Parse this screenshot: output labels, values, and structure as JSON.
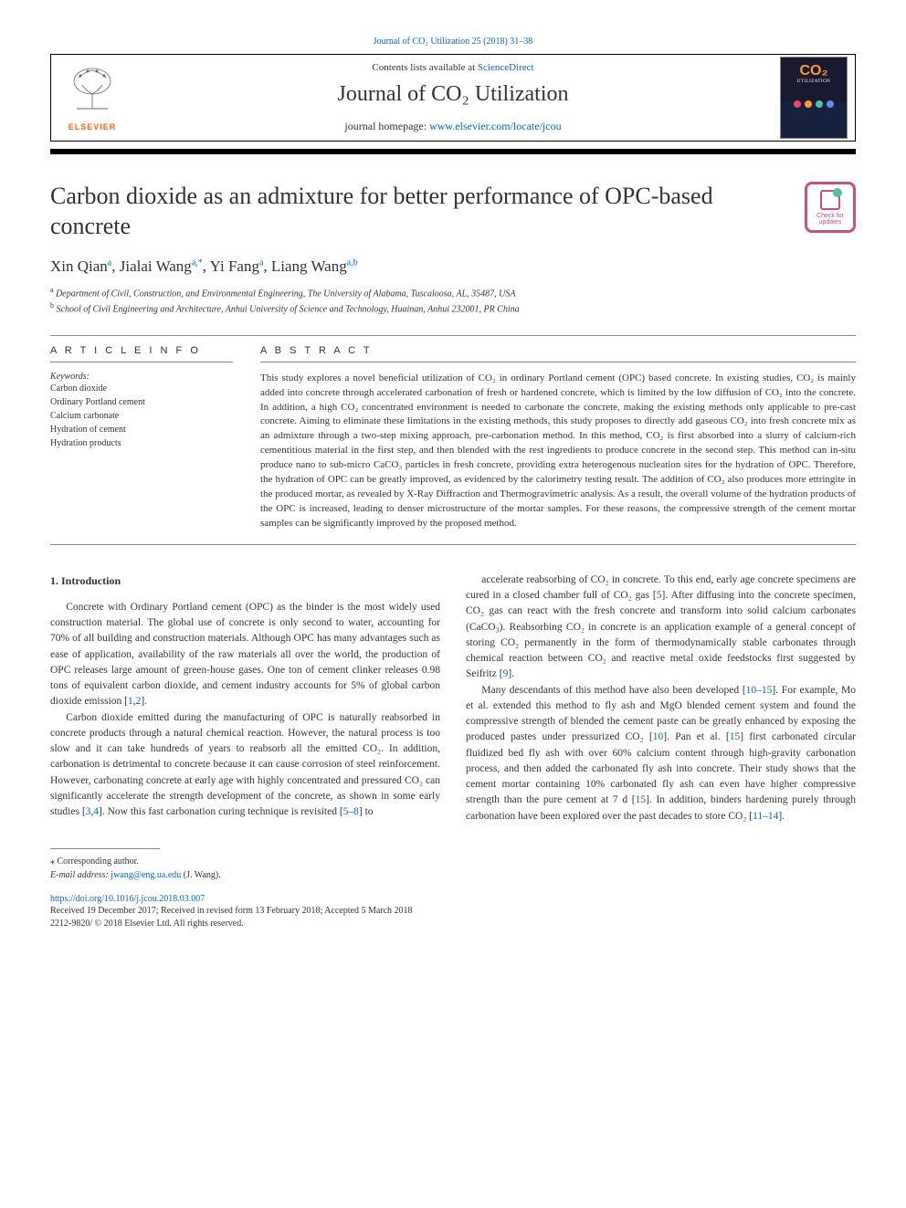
{
  "journal_ref": "Journal of CO₂ Utilization 25 (2018) 31–38",
  "masthead": {
    "contents_prefix": "Contents lists available at ",
    "contents_link": "ScienceDirect",
    "journal_name": "Journal of CO₂ Utilization",
    "homepage_prefix": "journal homepage: ",
    "homepage_link": "www.elsevier.com/locate/jcou",
    "publisher": "ELSEVIER",
    "cover_brand": "CO₂",
    "cover_sub": "UTILIZATION"
  },
  "title": "Carbon dioxide as an admixture for better performance of OPC-based concrete",
  "updates_badge": "Check for updates",
  "authors_html": "Xin Qian<sup class='sup'>a</sup>, Jialai Wang<sup class='sup'>a,*</sup>, Yi Fang<sup class='sup'>a</sup>, Liang Wang<sup class='sup'>a,b</sup>",
  "affiliations": [
    {
      "sup": "a",
      "text": "Department of Civil, Construction, and Environmental Engineering, The University of Alabama, Tuscaloosa, AL, 35487, USA"
    },
    {
      "sup": "b",
      "text": "School of Civil Engineering and Architecture, Anhui University of Science and Technology, Huainan, Anhui 232001, PR China"
    }
  ],
  "article_info_heading": "A R T I C L E  I N F O",
  "abstract_heading": "A B S T R A C T",
  "keywords_label": "Keywords:",
  "keywords": [
    "Carbon dioxide",
    "Ordinary Portland cement",
    "Calcium carbonate",
    "Hydration of cement",
    "Hydration products"
  ],
  "abstract": "This study explores a novel beneficial utilization of CO₂ in ordinary Portland cement (OPC) based concrete. In existing studies, CO₂ is mainly added into concrete through accelerated carbonation of fresh or hardened concrete, which is limited by the low diffusion of CO₂ into the concrete. In addition, a high CO₂ concentrated environment is needed to carbonate the concrete, making the existing methods only applicable to pre-cast concrete. Aiming to eliminate these limitations in the existing methods, this study proposes to directly add gaseous CO₂ into fresh concrete mix as an admixture through a two-step mixing approach, pre-carbonation method. In this method, CO₂ is first absorbed into a slurry of calcium-rich cementitious material in the first step, and then blended with the rest ingredients to produce concrete in the second step. This method can in-situ produce nano to sub-micro CaCO₃ particles in fresh concrete, providing extra heterogenous nucleation sites for the hydration of OPC. Therefore, the hydration of OPC can be greatly improved, as evidenced by the calorimetry testing result. The addition of CO₂ also produces more ettringite in the produced mortar, as revealed by X-Ray Diffraction and Thermogravimetric analysis. As a result, the overall volume of the hydration products of the OPC is increased, leading to denser microstructure of the mortar samples. For these reasons, the compressive strength of the cement mortar samples can be significantly improved by the proposed method.",
  "section1_heading": "1. Introduction",
  "col1_paras": [
    "Concrete with Ordinary Portland cement (OPC) as the binder is the most widely used construction material. The global use of concrete is only second to water, accounting for 70% of all building and construction materials. Although OPC has many advantages such as ease of application, availability of the raw materials all over the world, the production of OPC releases large amount of green-house gases. One ton of cement clinker releases 0.98 tons of equivalent carbon dioxide, and cement industry accounts for 5% of global carbon dioxide emission [<span class='cite'>1</span>,<span class='cite'>2</span>].",
    "Carbon dioxide emitted during the manufacturing of OPC is naturally reabsorbed in concrete products through a natural chemical reaction. However, the natural process is too slow and it can take hundreds of years to reabsorb all the emitted CO₂. In addition, carbonation is detrimental to concrete because it can cause corrosion of steel reinforcement. However, carbonating concrete at early age with highly concentrated and pressured CO₂ can significantly accelerate the strength development of the concrete, as shown in some early studies [<span class='cite'>3</span>,<span class='cite'>4</span>]. Now this fast carbonation curing technique is revisited [<span class='cite'>5–8</span>] to"
  ],
  "col2_paras": [
    "accelerate reabsorbing of CO₂ in concrete. To this end, early age concrete specimens are cured in a closed chamber full of CO₂ gas [<span class='cite'>5</span>]. After diffusing into the concrete specimen, CO₂ gas can react with the fresh concrete and transform into solid calcium carbonates (CaCO₃). Reabsorbing CO₂ in concrete is an application example of a general concept of storing CO₂ permanently in the form of thermodynamically stable carbonates through chemical reaction between CO₂ and reactive metal oxide feedstocks first suggested by Seifritz [<span class='cite'>9</span>].",
    "Many descendants of this method have also been developed [<span class='cite'>10–15</span>]. For example, Mo et al. extended this method to fly ash and MgO blended cement system and found the compressive strength of blended the cement paste can be greatly enhanced by exposing the produced pastes under pressurized CO₂ [<span class='cite'>10</span>]. Pan et al. [<span class='cite'>15</span>] first carbonated circular fluidized bed fly ash with over 60% calcium content through high-gravity carbonation process, and then added the carbonated fly ash into concrete. Their study shows that the cement mortar containing 10% carbonated fly ash can even have higher compressive strength than the pure cement at 7 d [<span class='cite'>15</span>]. In addition, binders hardening purely through carbonation have been explored over the past decades to store CO₂ [<span class='cite'>11–14</span>]."
  ],
  "footnote": {
    "corresponding": "⁎ Corresponding author.",
    "email_label": "E-mail address: ",
    "email": "jwang@eng.ua.edu",
    "email_suffix": " (J. Wang)."
  },
  "doi": "https://doi.org/10.1016/j.jcou.2018.03.007",
  "history": "Received 19 December 2017; Received in revised form 13 February 2018; Accepted 5 March 2018",
  "copyright": "2212-9820/ © 2018 Elsevier Ltd. All rights reserved.",
  "colors": {
    "link": "#0066cc",
    "elsevier_orange": "#ff6600",
    "badge_pink": "#c94f7c",
    "badge_green": "#4fc3a1",
    "cover_orange": "#ff9933"
  }
}
